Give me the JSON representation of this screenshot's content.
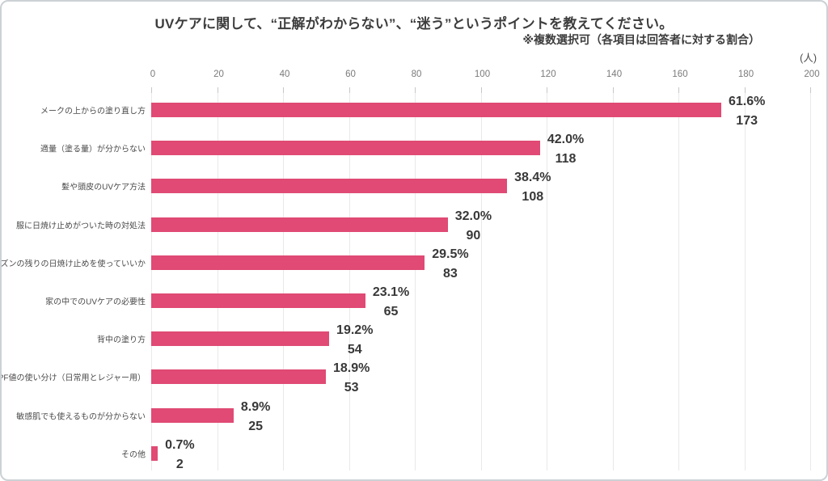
{
  "header": {
    "title": "UVケアに関して、“正解がわからない”、“迷う”というポイントを教えてください。",
    "note": "※複数選択可（各項目は回答者に対する割合）",
    "unit_label": "(人)"
  },
  "chart_data": {
    "type": "bar",
    "orientation": "horizontal",
    "title": "UVケアに関して、“正解がわからない”、“迷う”というポイントを教えてください。",
    "subtitle": "※複数選択可（各項目は回答者に対する割合）",
    "unit": "(人)",
    "categories": [
      "メークの上からの塗り直し方",
      "適量（塗る量）が分からない",
      "髪や頭皮のUVケア方法",
      "服に日焼け止めがついた時の対処法",
      "去シーズンの残りの日焼け止めを使っていいか",
      "家の中でのUVケアの必要性",
      "背中の塗り方",
      "SPF値の使い分け（日常用とレジャー用）",
      "敏感肌でも使えるものが分からない",
      "その他"
    ],
    "values": [
      173,
      118,
      108,
      90,
      83,
      65,
      54,
      53,
      25,
      2
    ],
    "percents": [
      61.6,
      42.0,
      38.4,
      32.0,
      29.5,
      23.1,
      19.2,
      18.9,
      8.9,
      0.7
    ],
    "percent_labels": [
      "61.6%",
      "42.0%",
      "38.4%",
      "32.0%",
      "29.5%",
      "23.1%",
      "19.2%",
      "18.9%",
      "8.9%",
      "0.7%"
    ],
    "count_labels": [
      "173",
      "118",
      "108",
      "90",
      "83",
      "65",
      "54",
      "53",
      "25",
      "2"
    ],
    "xlim": [
      0,
      200
    ],
    "x_ticks": [
      0,
      20,
      40,
      60,
      80,
      100,
      120,
      140,
      160,
      180,
      200
    ],
    "grid": true,
    "legend": "none",
    "bar_color": "#e04a74",
    "grid_color": "#e9e9e9",
    "text_color": "#3d3d3d"
  }
}
